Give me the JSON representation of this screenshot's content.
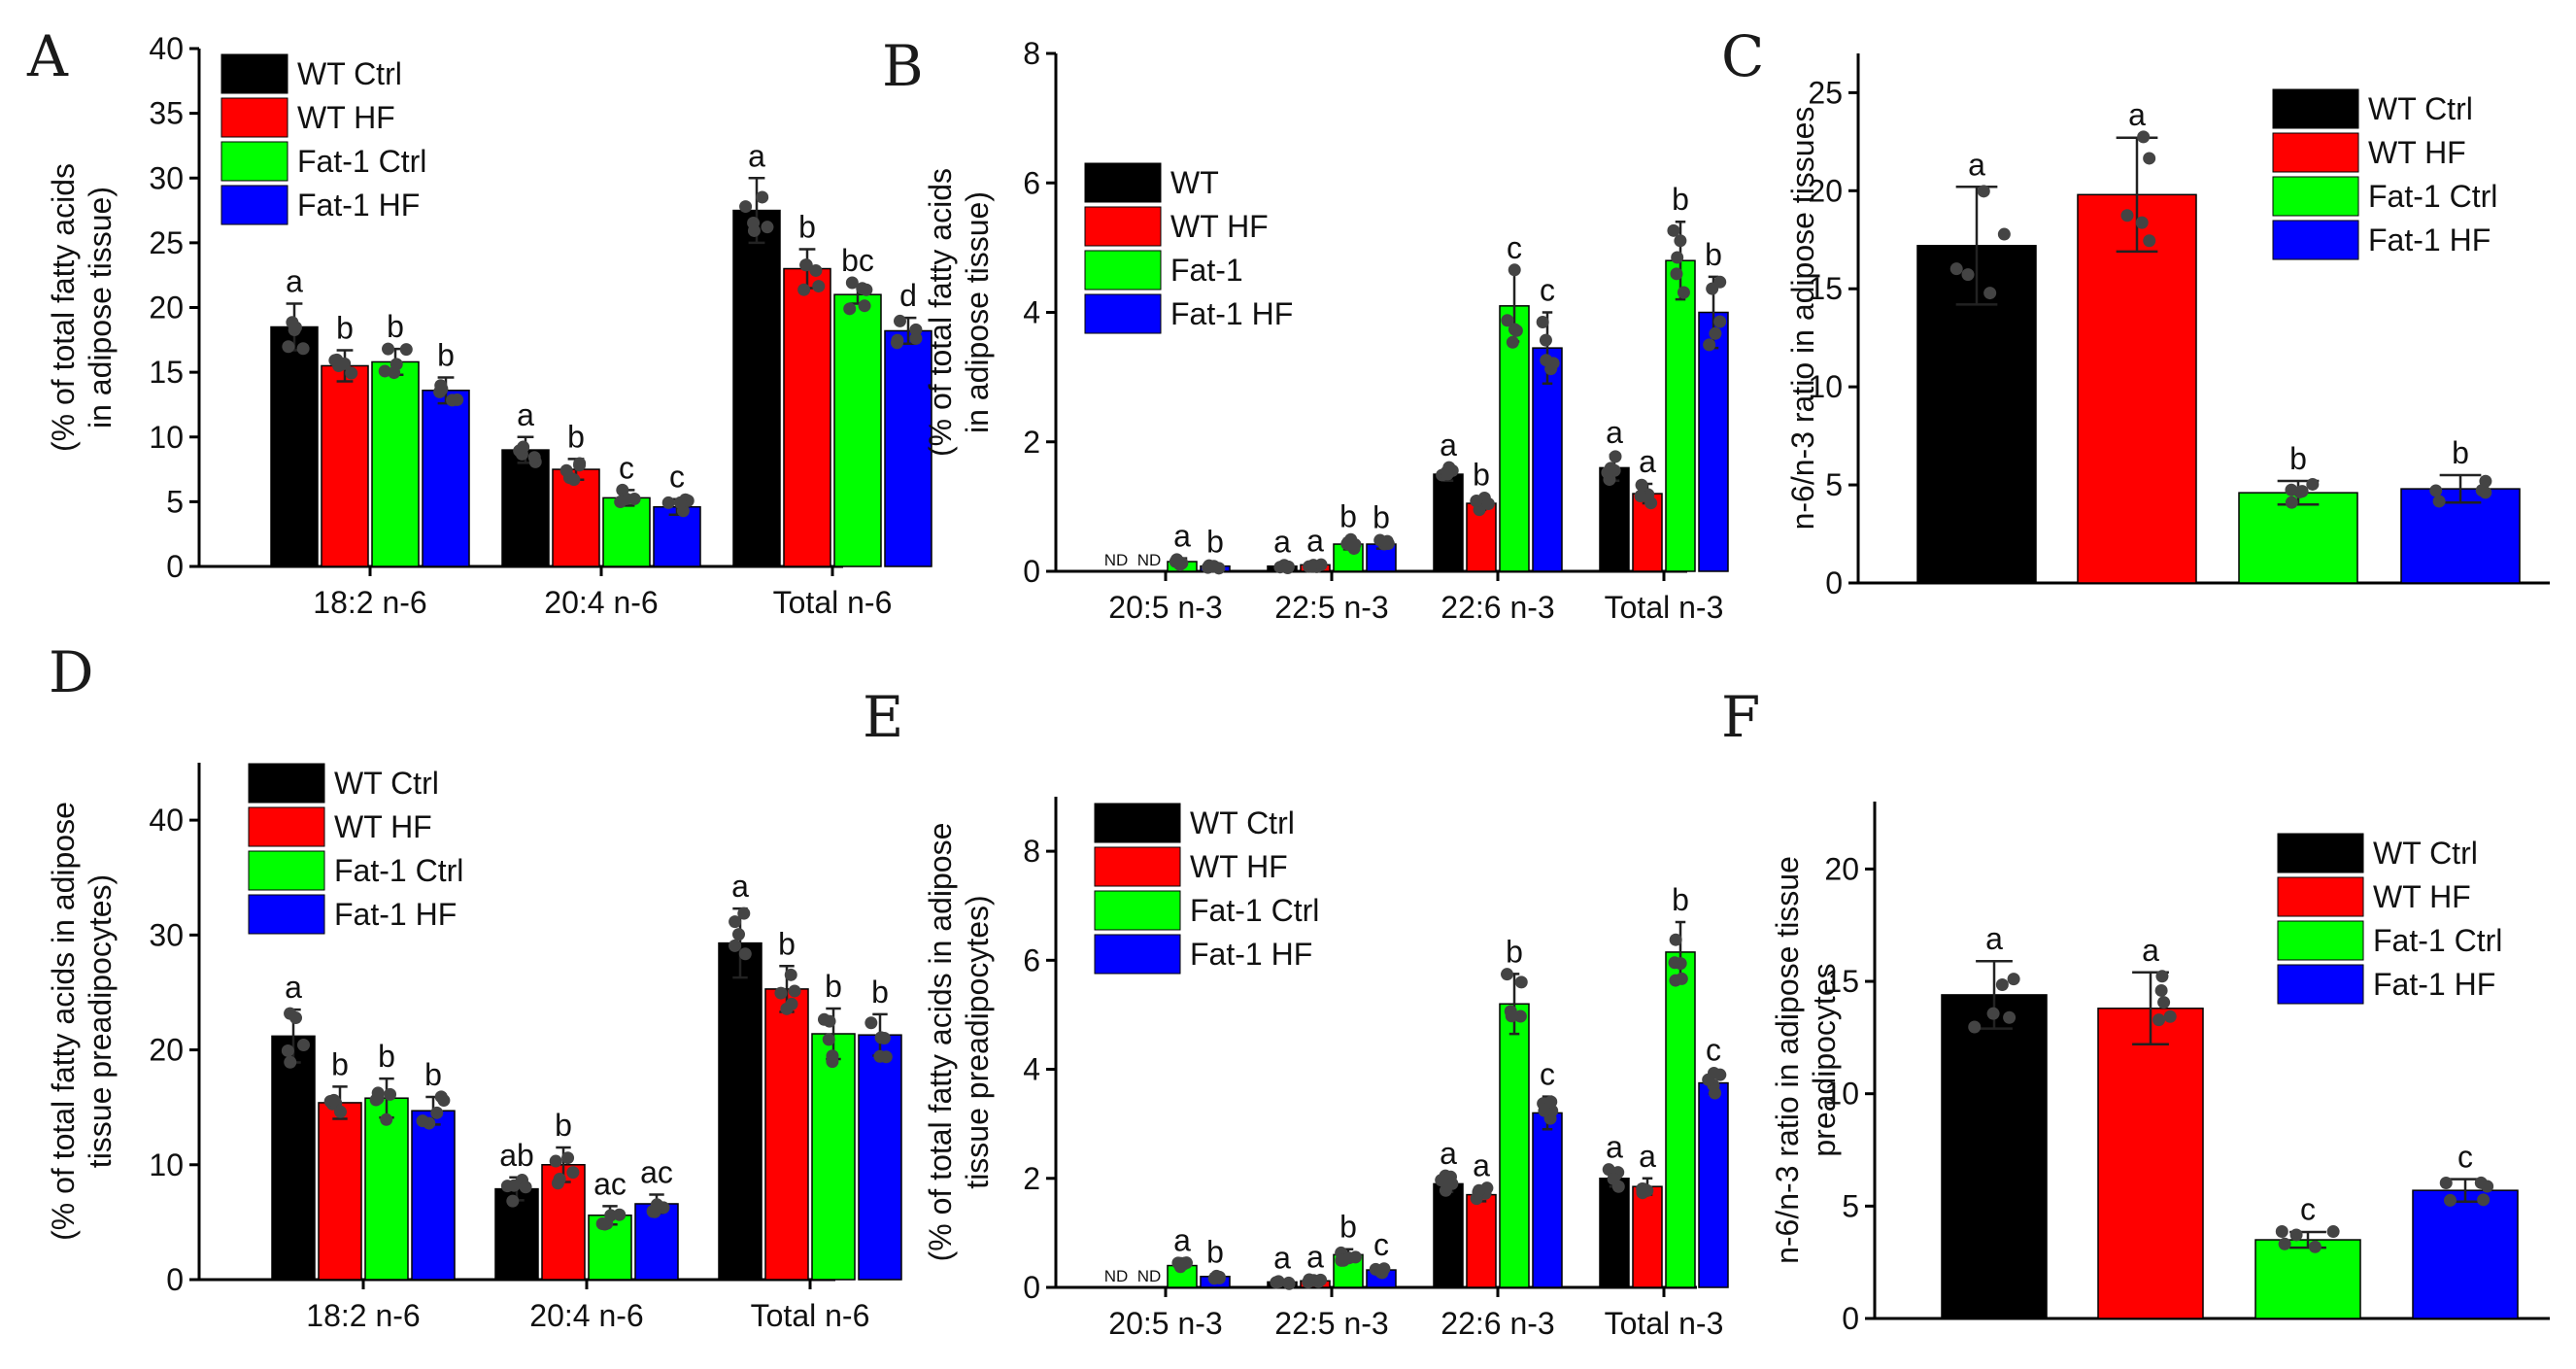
{
  "colors": {
    "WT_Ctrl": "#000000",
    "WT_HF": "#ff0000",
    "Fat1_Ctrl": "#00ff00",
    "Fat1_HF": "#0000ff"
  },
  "chart_data": [
    {
      "panel": "A",
      "type": "bar",
      "ylabel": [
        "(% of total fatty acids",
        "in adipose tissue)"
      ],
      "ylim": [
        0,
        40
      ],
      "ticks": [
        0,
        5,
        10,
        15,
        20,
        25,
        30,
        35,
        40
      ],
      "categories": [
        "18:2 n-6",
        "20:4 n-6",
        "Total n-6"
      ],
      "legend": [
        "WT Ctrl",
        "WT HF",
        "Fat-1 Ctrl",
        "Fat-1 HF"
      ],
      "series": [
        {
          "name": "WT Ctrl",
          "values": [
            18.5,
            9.0,
            27.5
          ],
          "err": [
            1.8,
            1.0,
            2.5
          ],
          "labels": [
            "a",
            "a",
            "a"
          ]
        },
        {
          "name": "WT HF",
          "values": [
            15.5,
            7.5,
            23.0
          ],
          "err": [
            1.2,
            0.8,
            1.5
          ],
          "labels": [
            "b",
            "b",
            "b"
          ]
        },
        {
          "name": "Fat-1 Ctrl",
          "values": [
            15.8,
            5.3,
            21.0
          ],
          "err": [
            1.0,
            0.6,
            0.7
          ],
          "labels": [
            "b",
            "c",
            "bc"
          ]
        },
        {
          "name": "Fat-1 HF",
          "values": [
            13.6,
            4.6,
            18.2
          ],
          "err": [
            1.0,
            0.6,
            1.0
          ],
          "labels": [
            "b",
            "c",
            "d"
          ]
        }
      ]
    },
    {
      "panel": "B",
      "type": "bar",
      "ylabel": [
        "(% of total fatty acids",
        "in adipose tissue)"
      ],
      "ylim": [
        0,
        8
      ],
      "ticks": [
        0,
        2,
        4,
        6,
        8
      ],
      "categories": [
        "20:5 n-3",
        "22:5 n-3",
        "22:6 n-3",
        "Total n-3"
      ],
      "legend": [
        "WT",
        "WT HF",
        "Fat-1",
        "Fat-1 HF"
      ],
      "series": [
        {
          "name": "WT",
          "values": [
            0,
            0.08,
            1.5,
            1.6
          ],
          "err": [
            0,
            0.03,
            0.1,
            0.2
          ],
          "labels": [
            "ND",
            "a",
            "a",
            "a"
          ]
        },
        {
          "name": "WT HF",
          "values": [
            0,
            0.1,
            1.05,
            1.2
          ],
          "err": [
            0,
            0.03,
            0.1,
            0.15
          ],
          "labels": [
            "ND",
            "a",
            "b",
            "a"
          ]
        },
        {
          "name": "Fat-1",
          "values": [
            0.15,
            0.42,
            4.1,
            4.8
          ],
          "err": [
            0.05,
            0.08,
            0.55,
            0.6
          ],
          "labels": [
            "a",
            "b",
            "c",
            "b"
          ]
        },
        {
          "name": "Fat-1 HF",
          "values": [
            0.08,
            0.42,
            3.45,
            4.0
          ],
          "err": [
            0.03,
            0.07,
            0.55,
            0.55
          ],
          "labels": [
            "b",
            "b",
            "c",
            "b"
          ]
        }
      ]
    },
    {
      "panel": "C",
      "type": "bar",
      "ylabel": [
        "n-6/n-3 ratio in adipose tissues"
      ],
      "ylim": [
        0,
        27
      ],
      "ticks": [
        0,
        5,
        10,
        15,
        20,
        25
      ],
      "categories": [
        ""
      ],
      "legend": [
        "WT Ctrl",
        "WT HF",
        "Fat-1 Ctrl",
        "Fat-1 HF"
      ],
      "series": [
        {
          "name": "WT Ctrl",
          "values": [
            17.2
          ],
          "err": [
            3.0
          ],
          "labels": [
            "a"
          ]
        },
        {
          "name": "WT HF",
          "values": [
            19.8
          ],
          "err": [
            2.9
          ],
          "labels": [
            "a"
          ]
        },
        {
          "name": "Fat-1 Ctrl",
          "values": [
            4.6
          ],
          "err": [
            0.6
          ],
          "labels": [
            "b"
          ]
        },
        {
          "name": "Fat-1 HF",
          "values": [
            4.8
          ],
          "err": [
            0.7
          ],
          "labels": [
            "b"
          ]
        }
      ]
    },
    {
      "panel": "D",
      "type": "bar",
      "ylabel": [
        "(% of total fatty acids in adipose",
        "tissue preadipocytes)"
      ],
      "ylim": [
        0,
        45
      ],
      "ticks": [
        0,
        10,
        20,
        30,
        40
      ],
      "categories": [
        "18:2 n-6",
        "20:4 n-6",
        "Total n-6"
      ],
      "legend": [
        "WT Ctrl",
        "WT HF",
        "Fat-1 Ctrl",
        "Fat-1 HF"
      ],
      "series": [
        {
          "name": "WT Ctrl",
          "values": [
            21.2,
            7.9,
            29.3
          ],
          "err": [
            2.3,
            1.0,
            3.0
          ],
          "labels": [
            "a",
            "ab",
            "a"
          ]
        },
        {
          "name": "WT HF",
          "values": [
            15.4,
            10.0,
            25.3
          ],
          "err": [
            1.4,
            1.5,
            2.0
          ],
          "labels": [
            "b",
            "b",
            "b"
          ]
        },
        {
          "name": "Fat-1 Ctrl",
          "values": [
            15.8,
            5.6,
            21.4
          ],
          "err": [
            1.7,
            0.8,
            2.2
          ],
          "labels": [
            "b",
            "ac",
            "b"
          ]
        },
        {
          "name": "Fat-1 HF",
          "values": [
            14.7,
            6.6,
            21.3
          ],
          "err": [
            1.2,
            0.8,
            1.8
          ],
          "labels": [
            "b",
            "ac",
            "b"
          ]
        }
      ]
    },
    {
      "panel": "E",
      "type": "bar",
      "ylabel": [
        "(% of total fatty acids in adipose",
        "tissue preadipocytes)"
      ],
      "ylim": [
        0,
        9
      ],
      "ticks": [
        0,
        2,
        4,
        6,
        8
      ],
      "categories": [
        "20:5 n-3",
        "22:5 n-3",
        "22:6 n-3",
        "Total n-3"
      ],
      "legend": [
        "WT Ctrl",
        "WT HF",
        "Fat-1 Ctrl",
        "Fat-1 HF"
      ],
      "series": [
        {
          "name": "WT Ctrl",
          "values": [
            0,
            0.1,
            1.9,
            2.0
          ],
          "err": [
            0,
            0.03,
            0.15,
            0.15
          ],
          "labels": [
            "ND",
            "a",
            "a",
            "a"
          ]
        },
        {
          "name": "WT HF",
          "values": [
            0,
            0.12,
            1.7,
            1.85
          ],
          "err": [
            0,
            0.03,
            0.12,
            0.15
          ],
          "labels": [
            "ND",
            "a",
            "a",
            "a"
          ]
        },
        {
          "name": "Fat-1 Ctrl",
          "values": [
            0.4,
            0.6,
            5.2,
            6.15
          ],
          "err": [
            0.05,
            0.1,
            0.55,
            0.55
          ],
          "labels": [
            "a",
            "b",
            "b",
            "b"
          ]
        },
        {
          "name": "Fat-1 HF",
          "values": [
            0.2,
            0.32,
            3.2,
            3.75
          ],
          "err": [
            0.04,
            0.05,
            0.3,
            0.2
          ],
          "labels": [
            "b",
            "c",
            "c",
            "c"
          ]
        }
      ]
    },
    {
      "panel": "F",
      "type": "bar",
      "ylabel": [
        "n-6/n-3 ratio in adipose tissue",
        "preadipocytes"
      ],
      "ylim": [
        0,
        23
      ],
      "ticks": [
        0,
        5,
        10,
        15,
        20
      ],
      "categories": [
        ""
      ],
      "legend": [
        "WT Ctrl",
        "WT HF",
        "Fat-1 Ctrl",
        "Fat-1 HF"
      ],
      "series": [
        {
          "name": "WT Ctrl",
          "values": [
            14.4
          ],
          "err": [
            1.5
          ],
          "labels": [
            "a"
          ]
        },
        {
          "name": "WT HF",
          "values": [
            13.8
          ],
          "err": [
            1.6
          ],
          "labels": [
            "a"
          ]
        },
        {
          "name": "Fat-1 Ctrl",
          "values": [
            3.5
          ],
          "err": [
            0.35
          ],
          "labels": [
            "c"
          ]
        },
        {
          "name": "Fat-1 HF",
          "values": [
            5.7
          ],
          "err": [
            0.5
          ],
          "labels": [
            "c"
          ]
        }
      ]
    }
  ]
}
